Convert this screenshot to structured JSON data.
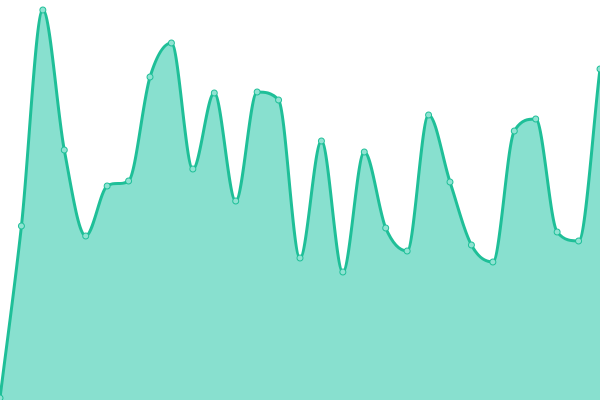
{
  "chart_data": {
    "type": "area",
    "title": "",
    "xlabel": "",
    "ylabel": "",
    "grid": false,
    "axes_visible": false,
    "legend": "none",
    "curve": "monotone",
    "x": [
      0,
      1,
      2,
      3,
      4,
      5,
      6,
      7,
      8,
      9,
      10,
      11,
      12,
      13,
      14,
      15,
      16,
      17,
      18,
      19,
      20,
      21,
      22,
      23,
      24,
      25,
      26,
      27,
      28
    ],
    "values": [
      2,
      174,
      390,
      250,
      164,
      214,
      219,
      323,
      357,
      231,
      307,
      199,
      308,
      300,
      142,
      259,
      128,
      248,
      172,
      149,
      285,
      218,
      155,
      138,
      269,
      281,
      168,
      159,
      331
    ],
    "ylim": [
      0,
      400
    ],
    "colors": {
      "fill": "#88e0cf",
      "line": "#1fbf98",
      "point": "#8fe3d2"
    }
  }
}
